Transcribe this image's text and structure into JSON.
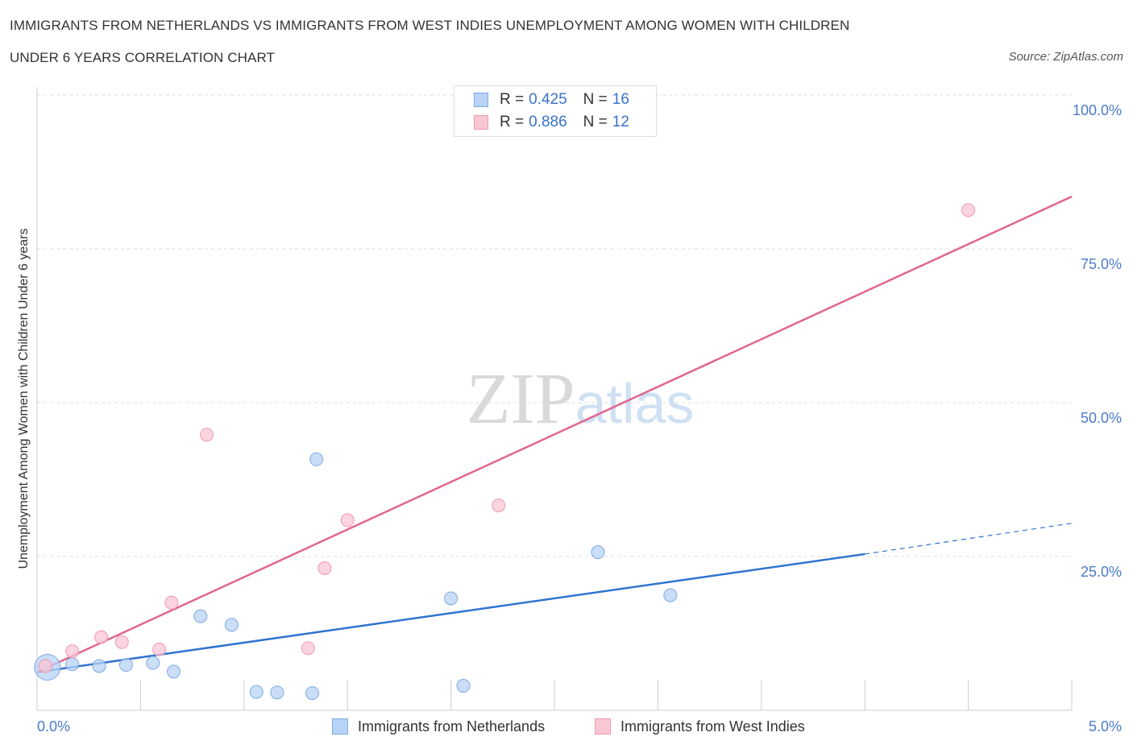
{
  "title_line1": "IMMIGRANTS FROM NETHERLANDS VS IMMIGRANTS FROM WEST INDIES UNEMPLOYMENT AMONG WOMEN WITH CHILDREN",
  "title_line2": "UNDER 6 YEARS CORRELATION CHART",
  "source": "Source: ZipAtlas.com",
  "watermark": "ZIPatlas",
  "legend": {
    "netherlands": {
      "r_label": "R =",
      "r_value": "0.425",
      "n_label": "N =",
      "n_value": "16"
    },
    "west_indies": {
      "r_label": "R =",
      "r_value": "0.886",
      "n_label": "N =",
      "n_value": "12"
    }
  },
  "colors": {
    "netherlands_fill": "#b8d3f5",
    "netherlands_stroke": "#7ea9e1",
    "netherlands_line": "#2f74cf",
    "west_indies_fill": "#f9c6d4",
    "west_indies_stroke": "#ef98b2",
    "west_indies_line": "#e0668f",
    "axis_label": "#4a7cc9",
    "grid": "#dddddd"
  },
  "chart_data": {
    "type": "scatter",
    "title": "IMMIGRANTS FROM NETHERLANDS VS IMMIGRANTS FROM WEST INDIES UNEMPLOYMENT AMONG WOMEN WITH CHILDREN UNDER 6 YEARS CORRELATION CHART",
    "xlabel": "",
    "ylabel": "Unemployment Among Women with Children Under 6 years",
    "xlim": [
      0,
      5
    ],
    "ylim": [
      0,
      100
    ],
    "x_tick_labels": [
      "0.0%",
      "5.0%"
    ],
    "y_tick_labels": [
      "25.0%",
      "50.0%",
      "75.0%",
      "100.0%"
    ],
    "y_ticks": [
      25,
      50,
      75,
      100
    ],
    "series": [
      {
        "name": "Immigrants from Netherlands",
        "points": [
          {
            "x": 0.05,
            "y": 7.0,
            "big": true
          },
          {
            "x": 0.17,
            "y": 7.5
          },
          {
            "x": 0.3,
            "y": 7.2
          },
          {
            "x": 0.43,
            "y": 7.4
          },
          {
            "x": 0.56,
            "y": 7.7
          },
          {
            "x": 0.66,
            "y": 6.3
          },
          {
            "x": 0.79,
            "y": 15.3
          },
          {
            "x": 0.94,
            "y": 13.9
          },
          {
            "x": 1.06,
            "y": 3.0
          },
          {
            "x": 1.16,
            "y": 2.9
          },
          {
            "x": 1.33,
            "y": 2.8
          },
          {
            "x": 1.35,
            "y": 40.8
          },
          {
            "x": 2.0,
            "y": 18.2
          },
          {
            "x": 2.06,
            "y": 4.0
          },
          {
            "x": 2.71,
            "y": 25.7
          },
          {
            "x": 3.06,
            "y": 18.7
          }
        ],
        "trend": {
          "x0": 0.0,
          "y0": 6.2,
          "x1": 4.0,
          "y1": 25.4,
          "dash_to_x": 5.0,
          "dash_to_y": 30.4
        }
      },
      {
        "name": "Immigrants from West Indies",
        "points": [
          {
            "x": 0.04,
            "y": 7.2
          },
          {
            "x": 0.17,
            "y": 9.6
          },
          {
            "x": 0.31,
            "y": 11.9
          },
          {
            "x": 0.41,
            "y": 11.1
          },
          {
            "x": 0.59,
            "y": 9.9
          },
          {
            "x": 0.65,
            "y": 17.5
          },
          {
            "x": 0.82,
            "y": 44.8
          },
          {
            "x": 1.31,
            "y": 10.1
          },
          {
            "x": 1.39,
            "y": 23.1
          },
          {
            "x": 1.5,
            "y": 30.9
          },
          {
            "x": 2.23,
            "y": 33.3
          },
          {
            "x": 4.5,
            "y": 81.3
          }
        ],
        "trend": {
          "x0": 0.0,
          "y0": 6.2,
          "x1": 5.0,
          "y1": 83.5
        }
      }
    ]
  },
  "bottom_legend": {
    "netherlands": "Immigrants from Netherlands",
    "west_indies": "Immigrants from West Indies"
  }
}
